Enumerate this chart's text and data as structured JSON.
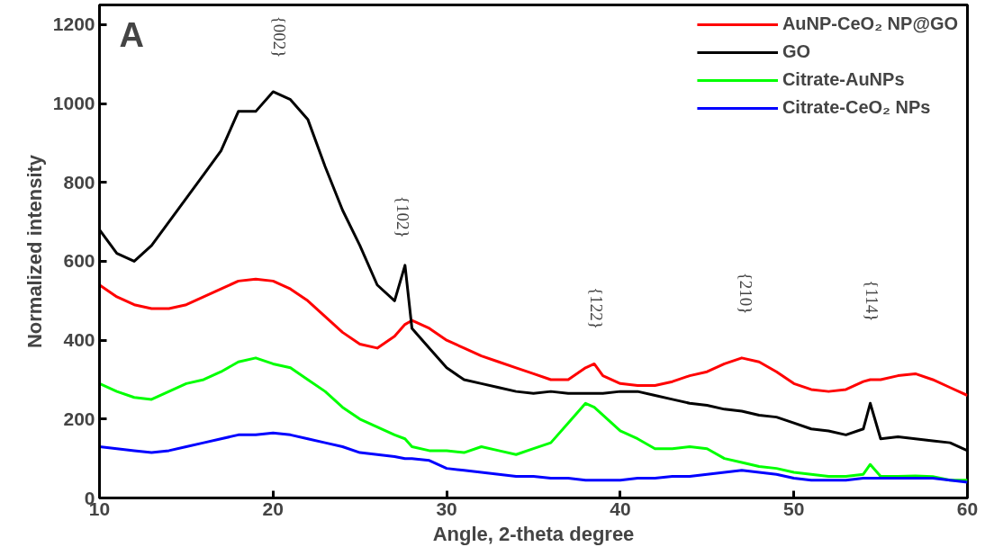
{
  "chart_data": {
    "type": "line",
    "xlabel": "Angle, 2-theta degree",
    "ylabel": "Normalized intensity",
    "xlim": [
      10,
      60
    ],
    "ylim": [
      0,
      1250
    ],
    "xticks": [
      10,
      20,
      30,
      40,
      50,
      60
    ],
    "yticks": [
      0,
      200,
      400,
      600,
      800,
      1000,
      1200
    ],
    "grid": false,
    "legend": "top right",
    "marker": "none",
    "line_style": "solid",
    "x": [
      10,
      11,
      12,
      13,
      14,
      15,
      16,
      17,
      18,
      19,
      20,
      21,
      22,
      23,
      24,
      25,
      26,
      27,
      27.6,
      28,
      29,
      30,
      31,
      32,
      33,
      34,
      35,
      36,
      37,
      38,
      38.5,
      39,
      40,
      41,
      42,
      43,
      44,
      45,
      46,
      47,
      48,
      49,
      50,
      51,
      52,
      53,
      54,
      54.4,
      55,
      56,
      57,
      58,
      59,
      60
    ],
    "series": [
      {
        "name": "AuNP-CeO₂ NP@GO",
        "color": "#ff0000",
        "values": [
          540,
          510,
          490,
          480,
          480,
          490,
          510,
          530,
          550,
          555,
          550,
          530,
          500,
          460,
          420,
          390,
          380,
          410,
          440,
          450,
          430,
          400,
          380,
          360,
          345,
          330,
          315,
          300,
          300,
          330,
          340,
          310,
          290,
          285,
          285,
          295,
          310,
          320,
          340,
          355,
          345,
          320,
          290,
          275,
          270,
          275,
          295,
          300,
          300,
          310,
          315,
          300,
          280,
          260
        ]
      },
      {
        "name": "GO",
        "color": "#000000",
        "values": [
          680,
          620,
          600,
          640,
          700,
          760,
          820,
          880,
          980,
          980,
          1030,
          1010,
          960,
          840,
          730,
          640,
          540,
          500,
          590,
          430,
          380,
          330,
          300,
          290,
          280,
          270,
          265,
          270,
          265,
          265,
          265,
          265,
          270,
          270,
          260,
          250,
          240,
          235,
          225,
          220,
          210,
          205,
          190,
          175,
          170,
          160,
          175,
          240,
          150,
          155,
          150,
          145,
          140,
          120
        ]
      },
      {
        "name": "Citrate-AuNPs",
        "color": "#00ff00",
        "values": [
          290,
          270,
          255,
          250,
          270,
          290,
          300,
          320,
          345,
          355,
          340,
          330,
          300,
          270,
          230,
          200,
          180,
          160,
          150,
          130,
          120,
          120,
          115,
          130,
          120,
          110,
          125,
          140,
          190,
          240,
          230,
          210,
          170,
          150,
          125,
          125,
          130,
          125,
          100,
          90,
          80,
          75,
          65,
          60,
          55,
          55,
          60,
          85,
          55,
          55,
          56,
          54,
          45,
          45
        ]
      },
      {
        "name": "Citrate-CeO₂ NPs",
        "color": "#0000ff",
        "values": [
          130,
          125,
          120,
          115,
          120,
          130,
          140,
          150,
          160,
          160,
          165,
          160,
          150,
          140,
          130,
          115,
          110,
          105,
          100,
          100,
          95,
          75,
          70,
          65,
          60,
          55,
          55,
          50,
          50,
          45,
          45,
          45,
          45,
          50,
          50,
          55,
          55,
          60,
          65,
          70,
          65,
          60,
          50,
          45,
          45,
          45,
          50,
          50,
          50,
          50,
          50,
          50,
          45,
          40
        ]
      }
    ],
    "annotations": [
      "A",
      "{002}",
      "{102}",
      "{122}",
      "{210}",
      "{114}"
    ]
  }
}
